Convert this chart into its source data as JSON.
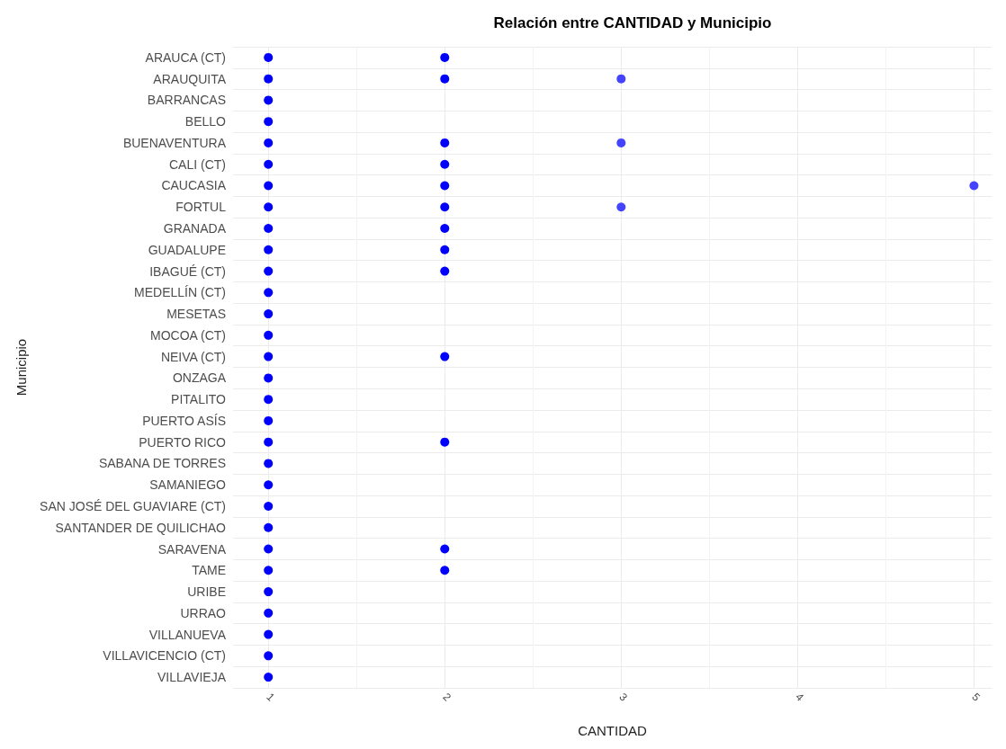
{
  "chart_data": {
    "type": "scatter",
    "orientation": "horizontal",
    "title": "Relación entre CANTIDAD y Municipio",
    "xlabel": "CANTIDAD",
    "ylabel": "Municipio",
    "categories": [
      "ARAUCA (CT)",
      "ARAUQUITA",
      "BARRANCAS",
      "BELLO",
      "BUENAVENTURA",
      "CALI (CT)",
      "CAUCASIA",
      "FORTUL",
      "GRANADA",
      "GUADALUPE",
      "IBAGUÉ (CT)",
      "MEDELLÍN (CT)",
      "MESETAS",
      "MOCOA (CT)",
      "NEIVA (CT)",
      "ONZAGA",
      "PITALITO",
      "PUERTO ASÍS",
      "PUERTO RICO",
      "SABANA DE TORRES",
      "SAMANIEGO",
      "SAN JOSÉ DEL GUAVIARE (CT)",
      "SANTANDER DE QUILICHAO",
      "SARAVENA",
      "TAME",
      "URIBE",
      "URRAO",
      "VILLANUEVA",
      "VILLAVICENCIO (CT)",
      "VILLAVIEJA"
    ],
    "series": [
      {
        "color": "#0000ff",
        "values": [
          1,
          1,
          1,
          1,
          1,
          1,
          1,
          1,
          1,
          1,
          1,
          1,
          1,
          1,
          1,
          1,
          1,
          1,
          1,
          1,
          1,
          1,
          1,
          1,
          1,
          1,
          1,
          1,
          1,
          1
        ]
      },
      {
        "color": "#0000ff",
        "values": [
          2,
          2,
          null,
          null,
          2,
          2,
          2,
          2,
          2,
          2,
          2,
          null,
          null,
          null,
          2,
          null,
          null,
          null,
          2,
          null,
          null,
          null,
          null,
          2,
          2,
          null,
          null,
          null,
          null,
          null
        ]
      },
      {
        "color": "#4444ff",
        "values": [
          null,
          3,
          null,
          null,
          3,
          null,
          null,
          3,
          null,
          null,
          null,
          null,
          null,
          null,
          null,
          null,
          null,
          null,
          null,
          null,
          null,
          null,
          null,
          null,
          null,
          null,
          null,
          null,
          null,
          null
        ]
      },
      {
        "color": "#4444ff",
        "values": [
          null,
          null,
          null,
          null,
          null,
          null,
          5,
          null,
          null,
          null,
          null,
          null,
          null,
          null,
          null,
          null,
          null,
          null,
          null,
          null,
          null,
          null,
          null,
          null,
          null,
          null,
          null,
          null,
          null,
          null
        ]
      }
    ],
    "xlim": [
      0.8,
      5.1
    ],
    "xticks": [
      1,
      2,
      3,
      4,
      5
    ],
    "grid": true,
    "marker": "circle"
  }
}
